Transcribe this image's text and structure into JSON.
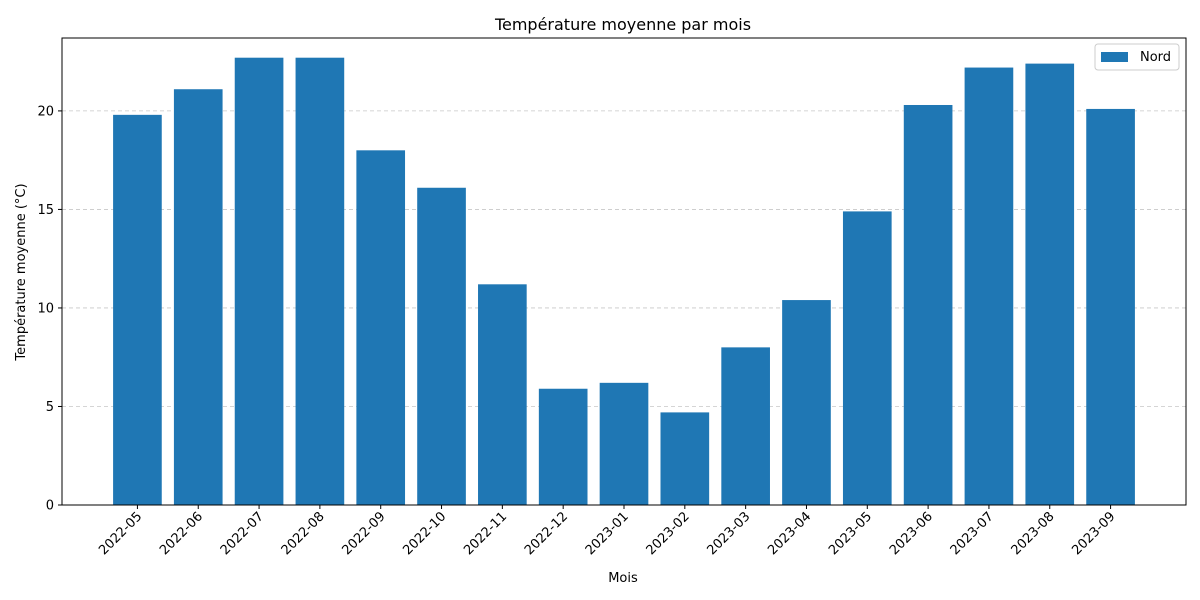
{
  "chart_data": {
    "type": "bar",
    "title": "Température moyenne par mois",
    "xlabel": "Mois",
    "ylabel": "Température moyenne (°C)",
    "categories": [
      "2022-05",
      "2022-06",
      "2022-07",
      "2022-08",
      "2022-09",
      "2022-10",
      "2022-11",
      "2022-12",
      "2023-01",
      "2023-02",
      "2023-03",
      "2023-04",
      "2023-05",
      "2023-06",
      "2023-07",
      "2023-08",
      "2023-09"
    ],
    "series": [
      {
        "name": "Nord",
        "color": "#1f77b4",
        "values": [
          19.8,
          21.1,
          22.7,
          22.7,
          18.0,
          16.1,
          11.2,
          5.9,
          6.2,
          4.7,
          8.0,
          10.4,
          14.9,
          20.3,
          22.2,
          22.4,
          20.1
        ]
      }
    ],
    "ylim": [
      0,
      23.7
    ],
    "yticks": [
      0,
      5,
      10,
      15,
      20
    ],
    "grid": "y",
    "legend_position": "top-right"
  }
}
